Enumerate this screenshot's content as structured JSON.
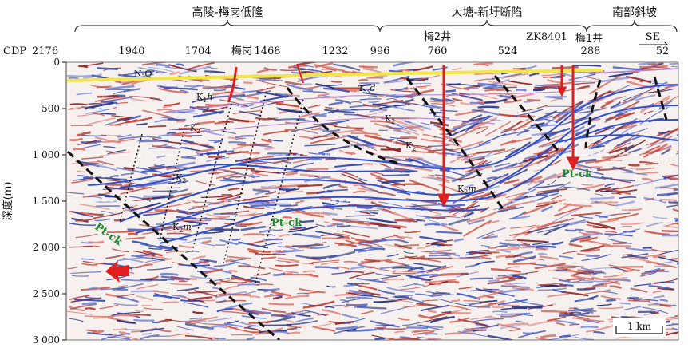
{
  "regions": [
    {
      "id": "gaoling",
      "label": "高陵-梅岗低隆"
    },
    {
      "id": "datang",
      "label": "大塘-新圩断陷"
    },
    {
      "id": "nanbu",
      "label": "南部斜坡"
    }
  ],
  "cdp_axis": {
    "prefix": "CDP",
    "ticks": [
      "2176",
      "1940",
      "1704",
      "1468",
      "1232",
      "996",
      "760",
      "524",
      "288",
      "52"
    ]
  },
  "wells": [
    {
      "id": "meigang",
      "label": "梅岗"
    },
    {
      "id": "mei2",
      "label": "梅2井"
    },
    {
      "id": "zk8401",
      "label": "ZK8401"
    },
    {
      "id": "mei1",
      "label": "梅1井"
    }
  ],
  "direction": "SE",
  "depth_axis": {
    "title": "深度(m)",
    "ticks": [
      "0",
      "500",
      "1 000",
      "1 500",
      "2 000",
      "2 500",
      "3 000"
    ],
    "values": [
      0,
      500,
      1000,
      1500,
      2000,
      2500,
      3000
    ]
  },
  "units": {
    "layer_1": {
      "main": "K",
      "sub": "3",
      "tail": "d"
    },
    "layer_2": {
      "main": "K",
      "sub": "2",
      "tail": ""
    },
    "layer_3": {
      "main": "K",
      "sub": "1",
      "tail": "h"
    },
    "layer_4": {
      "main": "K",
      "sub": "2",
      "tail": "m"
    },
    "layer_5": {
      "main": "K",
      "sub": "2",
      "tail": "m"
    },
    "layer_6": {
      "main": "K",
      "sub": "2",
      "tail": ""
    },
    "layer_7": {
      "main": "K",
      "sub": "2",
      "tail": ""
    },
    "layer_8": {
      "main": "K",
      "sub": "2",
      "tail": "m"
    }
  },
  "top_label": "N-Q",
  "basement_label": "Pt-ck",
  "scale_bar": "1 km",
  "colors": {
    "horizon": "#2f4fd0",
    "fault": "#111111",
    "well": "#e02020",
    "surface": "#f2e646",
    "basement_text": "#1f8a2e"
  }
}
